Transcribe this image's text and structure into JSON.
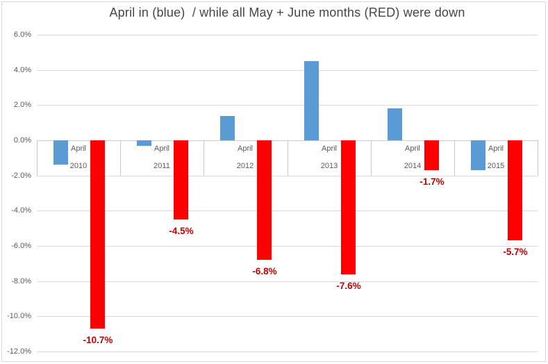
{
  "chart_data": {
    "type": "bar",
    "title": "April in (blue)  / while all May + June months (RED) were down",
    "categories": [
      {
        "month": "April",
        "year": "2010"
      },
      {
        "month": "April",
        "year": "2011"
      },
      {
        "month": "April",
        "year": "2012"
      },
      {
        "month": "April",
        "year": "2013"
      },
      {
        "month": "April",
        "year": "2014"
      },
      {
        "month": "April",
        "year": "2015"
      }
    ],
    "series": [
      {
        "name": "April (blue)",
        "color": "#5b9bd5",
        "values": [
          -1.4,
          -0.3,
          1.4,
          4.5,
          1.8,
          -1.7
        ],
        "data_labels": null
      },
      {
        "name": "May + June (RED)",
        "color": "#ff0000",
        "values": [
          -10.7,
          -4.5,
          -6.8,
          -7.6,
          -1.7,
          -5.7
        ],
        "data_labels": [
          "-10.7%",
          "-4.5%",
          "-6.8%",
          "-7.6%",
          "-1.7%",
          "-5.7%"
        ]
      }
    ],
    "y_ticks": [
      {
        "value": 6,
        "label": "6.0%"
      },
      {
        "value": 4,
        "label": "4.0%"
      },
      {
        "value": 2,
        "label": "2.0%"
      },
      {
        "value": 0,
        "label": "0.0%"
      },
      {
        "value": -2,
        "label": "-2.0%"
      },
      {
        "value": -4,
        "label": "-4.0%"
      },
      {
        "value": -6,
        "label": "-6.0%"
      },
      {
        "value": -8,
        "label": "-8.0%"
      },
      {
        "value": -10,
        "label": "-10.0%"
      },
      {
        "value": -12,
        "label": "-12.0%"
      }
    ],
    "ylim": [
      -12,
      6
    ],
    "grid": "horizontal",
    "legend": "none",
    "colors": {
      "april_bar": "#5b9bd5",
      "may_june_bar": "#ff0000",
      "data_label_text": "#c00000",
      "gridline": "#d9d9d9",
      "axis_text": "#595959",
      "title_text": "#454545"
    }
  }
}
